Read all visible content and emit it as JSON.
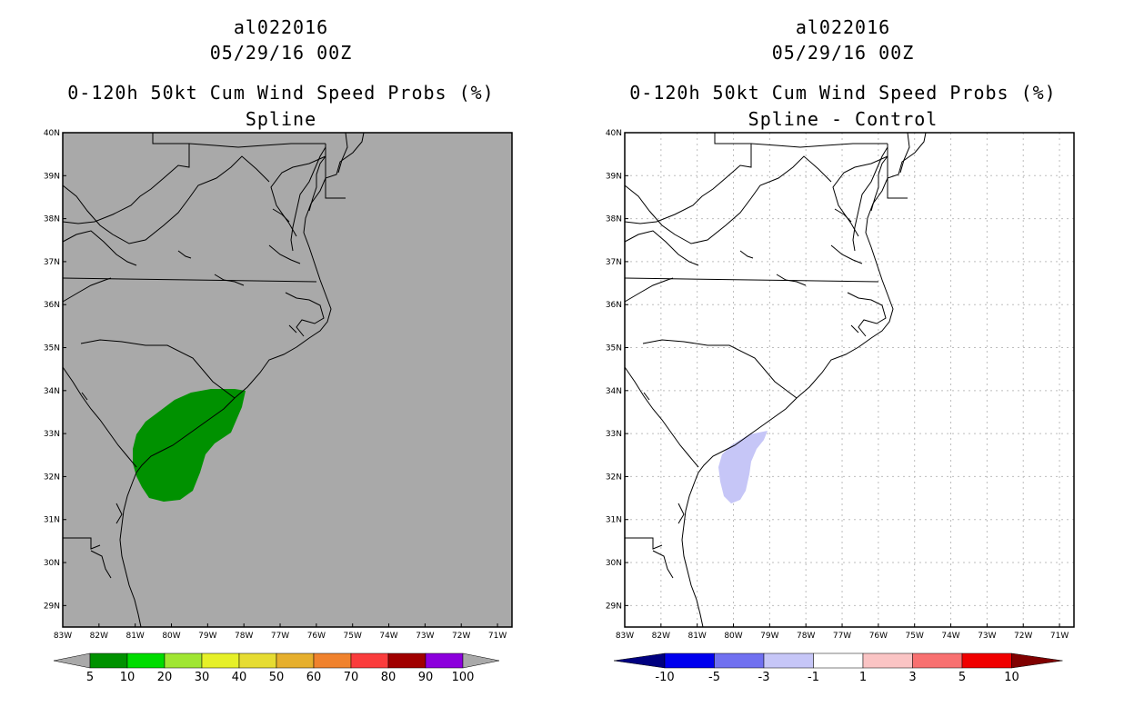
{
  "left_panel": {
    "storm_id": "al022016",
    "datetime": "05/29/16 00Z",
    "product": "0-120h 50kt Cum Wind Speed Probs (%)",
    "subtitle": "Spline",
    "background_color": "#a9a9a9",
    "probability_area_color": "#009100"
  },
  "right_panel": {
    "storm_id": "al022016",
    "datetime": "05/29/16 00Z",
    "product": "0-120h 50kt Cum Wind Speed Probs (%)",
    "subtitle": "Spline - Control",
    "background_color": "#ffffff",
    "difference_area_color": "#c6c6f7"
  },
  "axes": {
    "lat_labels": [
      "40N",
      "39N",
      "38N",
      "37N",
      "36N",
      "35N",
      "34N",
      "33N",
      "32N",
      "31N",
      "30N",
      "29N"
    ],
    "lat_values": [
      40,
      39,
      38,
      37,
      36,
      35,
      34,
      33,
      32,
      31,
      30,
      29
    ],
    "lon_labels": [
      "83W",
      "82W",
      "81W",
      "80W",
      "79W",
      "78W",
      "77W",
      "76W",
      "75W",
      "74W",
      "73W",
      "72W",
      "71W"
    ],
    "lon_values": [
      -83,
      -82,
      -81,
      -80,
      -79,
      -78,
      -77,
      -76,
      -75,
      -74,
      -73,
      -72,
      -71
    ],
    "lat_range": [
      28.5,
      40
    ],
    "lon_range": [
      -83,
      -70.6
    ]
  },
  "left_colorbar": {
    "labels": [
      "5",
      "10",
      "20",
      "30",
      "40",
      "50",
      "60",
      "70",
      "80",
      "90",
      "100"
    ],
    "colors": [
      "#009100",
      "#00dc00",
      "#a0e632",
      "#e6f028",
      "#e6dc32",
      "#e6af2d",
      "#f0822d",
      "#fa3c3c",
      "#a00000",
      "#8c00dc"
    ],
    "arrow_color": "#a9a9a9"
  },
  "right_colorbar": {
    "labels": [
      "-10",
      "-5",
      "-3",
      "-1",
      "1",
      "3",
      "5",
      "10"
    ],
    "colors": [
      "#0000ee",
      "#7070f0",
      "#c6c6f7",
      "#ffffff",
      "#fac4c4",
      "#f87070",
      "#f00000"
    ],
    "low_arrow_color": "#000080",
    "high_arrow_color": "#800000"
  }
}
